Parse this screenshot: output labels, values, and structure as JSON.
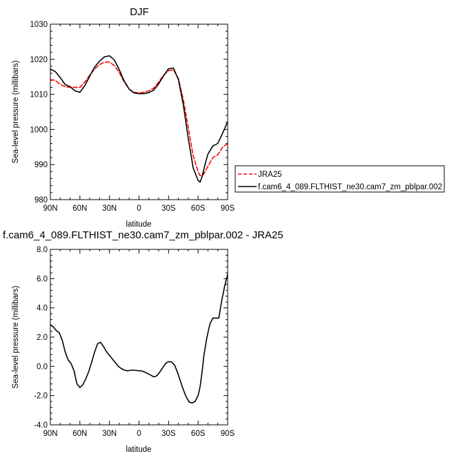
{
  "chart_data": [
    {
      "type": "line",
      "title": "DJF",
      "xlabel": "latitude",
      "ylabel": "Sea-level pressure (millibars)",
      "xlim": [
        90,
        -90
      ],
      "ylim": [
        980,
        1030
      ],
      "xticks": [
        90,
        60,
        30,
        0,
        -30,
        -60,
        -90
      ],
      "xtick_labels": [
        "90N",
        "60N",
        "30N",
        "0",
        "30S",
        "60S",
        "90S"
      ],
      "yticks": [
        980,
        990,
        1000,
        1010,
        1020,
        1030
      ],
      "ytick_labels": [
        "980",
        "990",
        "1000",
        "1010",
        "1020",
        "1030"
      ],
      "legend_position": "right",
      "series": [
        {
          "name": "JRA25",
          "color": "#ff0000",
          "dash": "dashed",
          "x": [
            90,
            85,
            80,
            75,
            70,
            65,
            60,
            55,
            50,
            45,
            40,
            35,
            30,
            25,
            20,
            15,
            10,
            5,
            0,
            -5,
            -10,
            -15,
            -20,
            -25,
            -30,
            -35,
            -40,
            -45,
            -50,
            -55,
            -60,
            -62,
            -65,
            -70,
            -75,
            -80,
            -85,
            -90
          ],
          "y": [
            1014.2,
            1014.0,
            1012.8,
            1012.2,
            1012.0,
            1012.0,
            1012.0,
            1013.5,
            1015.5,
            1017.2,
            1018.5,
            1019.2,
            1019.2,
            1018.2,
            1016.2,
            1013.5,
            1011.5,
            1010.6,
            1010.4,
            1010.6,
            1011.0,
            1011.8,
            1013.5,
            1015.5,
            1016.8,
            1017.0,
            1014.5,
            1008.5,
            1000.5,
            992.5,
            988.0,
            986.8,
            987.0,
            989.5,
            992.0,
            992.8,
            995.0,
            996.0
          ]
        },
        {
          "name": "f.cam6_4_089.FLTHIST_ne30.cam7_zm_pblpar.002",
          "color": "#000000",
          "dash": "solid",
          "x": [
            90,
            85,
            80,
            75,
            70,
            65,
            60,
            55,
            50,
            45,
            40,
            35,
            30,
            25,
            20,
            15,
            10,
            5,
            0,
            -5,
            -10,
            -15,
            -20,
            -25,
            -30,
            -35,
            -40,
            -45,
            -50,
            -55,
            -60,
            -62,
            -64,
            -67,
            -70,
            -75,
            -80,
            -85,
            -90
          ],
          "y": [
            1017.2,
            1016.5,
            1014.8,
            1012.8,
            1012.2,
            1011.0,
            1010.6,
            1012.5,
            1015.2,
            1017.8,
            1019.5,
            1020.7,
            1021.0,
            1019.8,
            1017.0,
            1013.8,
            1011.5,
            1010.4,
            1010.2,
            1010.2,
            1010.5,
            1011.2,
            1013.0,
            1015.3,
            1017.3,
            1017.5,
            1014.2,
            1007.0,
            997.5,
            989.0,
            985.5,
            985.0,
            986.5,
            990.0,
            993.0,
            995.3,
            996.0,
            999.0,
            1002.2
          ]
        }
      ]
    },
    {
      "type": "line",
      "title": "f.cam6_4_089.FLTHIST_ne30.cam7_zm_pblpar.002 - JRA25",
      "xlabel": "latitude",
      "ylabel": "Sea-level pressure (millibars)",
      "xlim": [
        90,
        -90
      ],
      "ylim": [
        -4,
        8
      ],
      "xticks": [
        90,
        60,
        30,
        0,
        -30,
        -60,
        -90
      ],
      "xtick_labels": [
        "90N",
        "60N",
        "30N",
        "0",
        "30S",
        "60S",
        "90S"
      ],
      "yticks": [
        -4,
        -2,
        0,
        2,
        4,
        6,
        8
      ],
      "ytick_labels": [
        "-4.0",
        "-2.0",
        "0.0",
        "2.0",
        "4.0",
        "6.0",
        "8.0"
      ],
      "series": [
        {
          "color": "#000000",
          "dash": "solid",
          "x": [
            90,
            87,
            84,
            81,
            78,
            75,
            72,
            69,
            66,
            63,
            60,
            57,
            54,
            51,
            48,
            45,
            42,
            39,
            36,
            33,
            30,
            27,
            24,
            21,
            18,
            15,
            12,
            9,
            6,
            3,
            0,
            -3,
            -6,
            -9,
            -12,
            -15,
            -18,
            -21,
            -24,
            -27,
            -30,
            -33,
            -36,
            -39,
            -42,
            -45,
            -48,
            -51,
            -54,
            -57,
            -60,
            -62,
            -64,
            -66,
            -69,
            -72,
            -75,
            -78,
            -81,
            -84,
            -87,
            -90
          ],
          "y": [
            2.85,
            2.7,
            2.45,
            2.3,
            1.8,
            1.0,
            0.45,
            0.2,
            -0.3,
            -1.2,
            -1.45,
            -1.25,
            -0.85,
            -0.35,
            0.3,
            1.0,
            1.55,
            1.65,
            1.35,
            1.0,
            0.75,
            0.5,
            0.25,
            0.0,
            -0.15,
            -0.25,
            -0.3,
            -0.28,
            -0.25,
            -0.28,
            -0.3,
            -0.32,
            -0.4,
            -0.5,
            -0.6,
            -0.72,
            -0.65,
            -0.4,
            -0.1,
            0.2,
            0.32,
            0.3,
            0.1,
            -0.4,
            -1.0,
            -1.6,
            -2.1,
            -2.45,
            -2.5,
            -2.4,
            -2.0,
            -1.4,
            -0.4,
            0.8,
            2.0,
            2.9,
            3.3,
            3.3,
            3.3,
            4.5,
            5.5,
            6.3
          ]
        }
      ]
    }
  ]
}
